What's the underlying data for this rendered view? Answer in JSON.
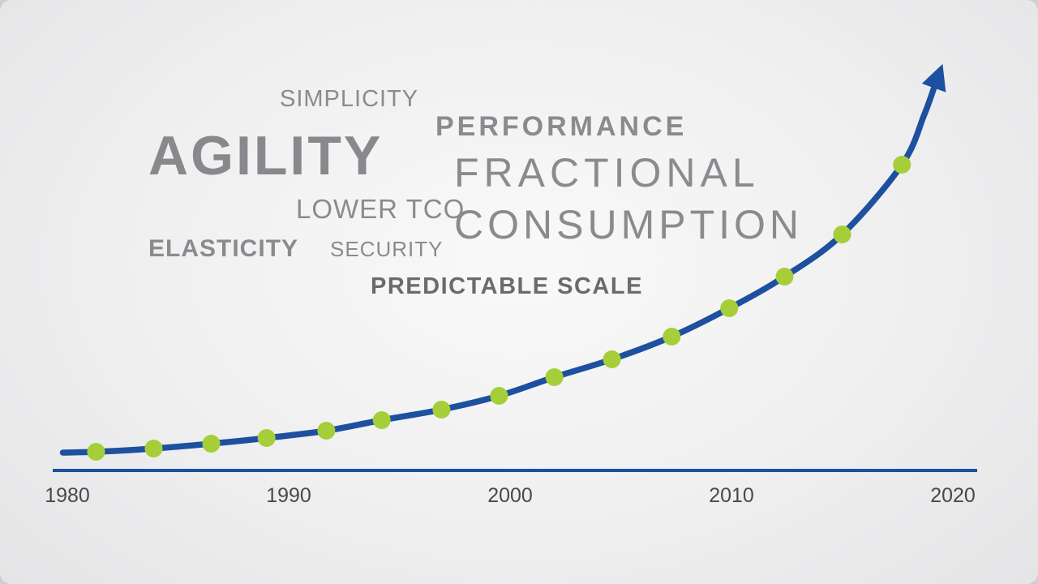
{
  "keywords": [
    {
      "id": "simplicity",
      "text": "SIMPLICITY"
    },
    {
      "id": "agility",
      "text": "AGILITY"
    },
    {
      "id": "performance",
      "text": "PERFORMANCE"
    },
    {
      "id": "fractional",
      "text": "FRACTIONAL"
    },
    {
      "id": "lower-tco",
      "text": "LOWER TCO"
    },
    {
      "id": "consumption",
      "text": "CONSUMPTION"
    },
    {
      "id": "elasticity",
      "text": "ELASTICITY"
    },
    {
      "id": "security",
      "text": "SECURITY"
    },
    {
      "id": "predictable-scale",
      "text": "PREDICTABLE SCALE"
    }
  ],
  "chart_data": {
    "type": "line",
    "title": "Exponential growth curve with milestone dots, 1980-2020",
    "x_axis": {
      "ticks": [
        "1980",
        "1990",
        "2000",
        "2010",
        "2020"
      ],
      "min": 1980,
      "max": 2020
    },
    "y_axis": {
      "visible": false,
      "units": "relative growth (unlabeled)"
    },
    "grid": false,
    "legend": "none",
    "arrow_at_end": true,
    "colors": {
      "curve": "#1d509f",
      "dots": "#a6ce39",
      "axis": "#1d509f"
    },
    "curve_start": {
      "year": 1979.8,
      "value": 22
    },
    "points": [
      {
        "year": 1981.3,
        "value": 23
      },
      {
        "year": 1983.9,
        "value": 27
      },
      {
        "year": 1986.5,
        "value": 33
      },
      {
        "year": 1989.0,
        "value": 40
      },
      {
        "year": 1991.7,
        "value": 49
      },
      {
        "year": 1994.2,
        "value": 62
      },
      {
        "year": 1996.9,
        "value": 75
      },
      {
        "year": 1999.5,
        "value": 92
      },
      {
        "year": 2002.0,
        "value": 115
      },
      {
        "year": 2004.6,
        "value": 137
      },
      {
        "year": 2007.3,
        "value": 165
      },
      {
        "year": 2009.9,
        "value": 200
      },
      {
        "year": 2012.4,
        "value": 239
      },
      {
        "year": 2015.0,
        "value": 291
      },
      {
        "year": 2017.7,
        "value": 377
      }
    ],
    "curve_pre_end": {
      "year": 2018.7,
      "value": 438
    },
    "curve_end": {
      "year": 2019.2,
      "value": 476
    }
  }
}
